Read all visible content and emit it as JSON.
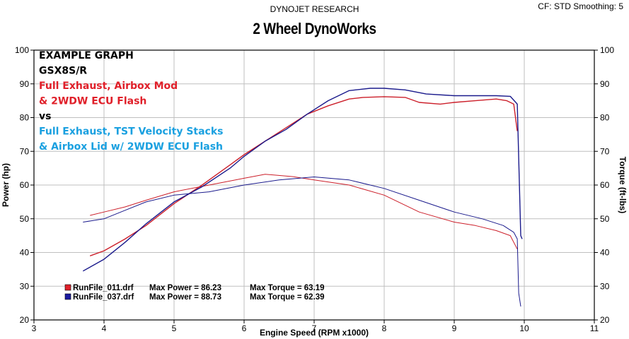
{
  "header": {
    "left": "DYNOJET RESEARCH",
    "right": "CF: STD  Smoothing: 5",
    "title": "2 Wheel DynoWorks"
  },
  "annotations": [
    {
      "text": "EXAMPLE GRAPH",
      "color": "#000000"
    },
    {
      "text": "GSX8S/R",
      "color": "#000000"
    },
    {
      "text": "Full Exhaust, Airbox Mod",
      "color": "#e0202a"
    },
    {
      "text": "& 2WDW ECU Flash",
      "color": "#e0202a"
    },
    {
      "text": "vs",
      "color": "#000000"
    },
    {
      "text": "Full Exhaust, TST Velocity Stacks",
      "color": "#1aa0e0"
    },
    {
      "text": "& Airbox Lid w/ 2WDW ECU Flash",
      "color": "#1aa0e0"
    }
  ],
  "legend": [
    {
      "file": "RunFile_011.drf",
      "max_power_label": "Max Power = 86.23",
      "max_torque_label": "Max Torque = 63.19",
      "color": "#e0202a"
    },
    {
      "file": "RunFile_037.drf",
      "max_power_label": "Max Power = 88.73",
      "max_torque_label": "Max Torque = 62.39",
      "color": "#1a1aa0"
    }
  ],
  "chart_data": {
    "type": "line",
    "title": "2 Wheel DynoWorks",
    "xlabel": "Engine Speed (RPM x1000)",
    "ylabel": "Power (hp)",
    "y2label": "Torque (ft-lbs)",
    "xlim": [
      3,
      11
    ],
    "ylim": [
      20,
      100
    ],
    "y2lim": [
      20,
      100
    ],
    "xticks": [
      3,
      4,
      5,
      6,
      7,
      8,
      9,
      10,
      11
    ],
    "yticks": [
      20,
      30,
      40,
      50,
      60,
      70,
      80,
      90,
      100
    ],
    "grid": true,
    "colors": {
      "red": "#cc1f2a",
      "blue": "#1a1a8c",
      "grid": "#bfbfbf",
      "background": "#ffffff"
    },
    "series": [
      {
        "name": "RunFile_011.drf",
        "quantity": "power",
        "color": "#cc1f2a",
        "points": [
          [
            3.8,
            39
          ],
          [
            4.0,
            40.5
          ],
          [
            4.3,
            44
          ],
          [
            4.6,
            48
          ],
          [
            5.0,
            54.5
          ],
          [
            5.4,
            60
          ],
          [
            5.8,
            66
          ],
          [
            6.0,
            69
          ],
          [
            6.3,
            73
          ],
          [
            6.6,
            77
          ],
          [
            6.9,
            81
          ],
          [
            7.2,
            83.5
          ],
          [
            7.5,
            85.5
          ],
          [
            7.7,
            86
          ],
          [
            8.0,
            86.2
          ],
          [
            8.3,
            86
          ],
          [
            8.5,
            84.5
          ],
          [
            8.8,
            84
          ],
          [
            9.0,
            84.5
          ],
          [
            9.3,
            85
          ],
          [
            9.6,
            85.5
          ],
          [
            9.75,
            85
          ],
          [
            9.85,
            84
          ],
          [
            9.9,
            76
          ]
        ]
      },
      {
        "name": "RunFile_011.drf",
        "quantity": "torque",
        "color": "#cc1f2a",
        "points": [
          [
            3.8,
            51
          ],
          [
            4.0,
            52
          ],
          [
            4.3,
            53.5
          ],
          [
            4.6,
            55.5
          ],
          [
            5.0,
            58
          ],
          [
            5.5,
            60
          ],
          [
            6.0,
            62
          ],
          [
            6.3,
            63.2
          ],
          [
            6.7,
            62.5
          ],
          [
            7.0,
            61.5
          ],
          [
            7.5,
            60
          ],
          [
            8.0,
            57
          ],
          [
            8.5,
            52
          ],
          [
            9.0,
            49
          ],
          [
            9.3,
            48
          ],
          [
            9.6,
            46.5
          ],
          [
            9.8,
            45
          ],
          [
            9.9,
            41
          ]
        ]
      },
      {
        "name": "RunFile_037.drf",
        "quantity": "power",
        "color": "#1a1a8c",
        "points": [
          [
            3.7,
            34.5
          ],
          [
            4.0,
            38
          ],
          [
            4.3,
            43
          ],
          [
            4.6,
            48.5
          ],
          [
            5.0,
            55
          ],
          [
            5.4,
            59.5
          ],
          [
            5.8,
            65
          ],
          [
            6.0,
            68.5
          ],
          [
            6.3,
            73
          ],
          [
            6.6,
            76.5
          ],
          [
            6.9,
            81
          ],
          [
            7.2,
            85
          ],
          [
            7.5,
            88
          ],
          [
            7.8,
            88.7
          ],
          [
            8.0,
            88.7
          ],
          [
            8.3,
            88.2
          ],
          [
            8.6,
            87
          ],
          [
            9.0,
            86.5
          ],
          [
            9.3,
            86.5
          ],
          [
            9.6,
            86.5
          ],
          [
            9.8,
            86.3
          ],
          [
            9.9,
            84
          ],
          [
            9.95,
            45
          ],
          [
            9.97,
            44
          ]
        ]
      },
      {
        "name": "RunFile_037.drf",
        "quantity": "torque",
        "color": "#1a1a8c",
        "points": [
          [
            3.7,
            49
          ],
          [
            4.0,
            50
          ],
          [
            4.3,
            52.5
          ],
          [
            4.6,
            55
          ],
          [
            5.0,
            57
          ],
          [
            5.5,
            58
          ],
          [
            6.0,
            60
          ],
          [
            6.5,
            61.5
          ],
          [
            7.0,
            62.4
          ],
          [
            7.5,
            61.5
          ],
          [
            8.0,
            59
          ],
          [
            8.5,
            55.5
          ],
          [
            9.0,
            52
          ],
          [
            9.4,
            50
          ],
          [
            9.7,
            48
          ],
          [
            9.85,
            46
          ],
          [
            9.9,
            44
          ],
          [
            9.92,
            28
          ],
          [
            9.95,
            24
          ]
        ]
      }
    ]
  }
}
